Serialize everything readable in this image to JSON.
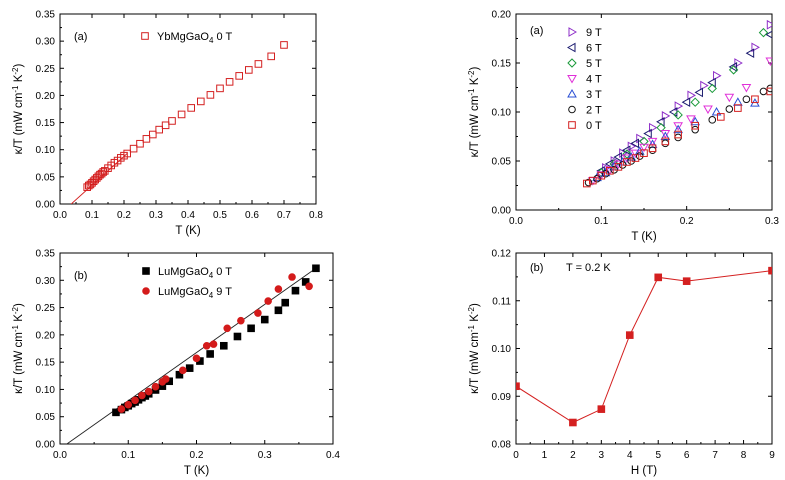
{
  "chart_data": [
    {
      "type": "scatter",
      "panel": "(a)",
      "xlabel": "T (K)",
      "ylabel": "κ/T (mW cm⁻¹ K⁻²)",
      "xlim": [
        0,
        0.8
      ],
      "ylim": [
        0,
        0.35
      ],
      "xticks": [
        "0.0",
        "0.1",
        "0.2",
        "0.3",
        "0.4",
        "0.5",
        "0.6",
        "0.7",
        "0.8"
      ],
      "yticks": [
        "0.00",
        "0.05",
        "0.10",
        "0.15",
        "0.20",
        "0.25",
        "0.30",
        "0.35"
      ],
      "legend_position": "top-left",
      "series": [
        {
          "name": "YbMgGaO₄ 0 T",
          "marker": "open-square",
          "color": "#d42020",
          "points": [
            [
              0.085,
              0.031
            ],
            [
              0.09,
              0.034
            ],
            [
              0.095,
              0.036
            ],
            [
              0.1,
              0.039
            ],
            [
              0.105,
              0.042
            ],
            [
              0.11,
              0.045
            ],
            [
              0.115,
              0.048
            ],
            [
              0.12,
              0.051
            ],
            [
              0.125,
              0.054
            ],
            [
              0.13,
              0.056
            ],
            [
              0.135,
              0.059
            ],
            [
              0.14,
              0.061
            ],
            [
              0.15,
              0.066
            ],
            [
              0.16,
              0.071
            ],
            [
              0.17,
              0.076
            ],
            [
              0.18,
              0.08
            ],
            [
              0.19,
              0.085
            ],
            [
              0.2,
              0.089
            ],
            [
              0.21,
              0.093
            ],
            [
              0.23,
              0.102
            ],
            [
              0.25,
              0.111
            ],
            [
              0.27,
              0.12
            ],
            [
              0.29,
              0.128
            ],
            [
              0.31,
              0.137
            ],
            [
              0.33,
              0.145
            ],
            [
              0.35,
              0.153
            ],
            [
              0.38,
              0.165
            ],
            [
              0.41,
              0.177
            ],
            [
              0.44,
              0.189
            ],
            [
              0.47,
              0.201
            ],
            [
              0.5,
              0.213
            ],
            [
              0.53,
              0.225
            ],
            [
              0.56,
              0.236
            ],
            [
              0.59,
              0.247
            ],
            [
              0.62,
              0.258
            ],
            [
              0.66,
              0.272
            ],
            [
              0.7,
              0.293
            ]
          ]
        }
      ],
      "fit_line": [
        [
          0.035,
          0.0
        ],
        [
          0.21,
          0.093
        ]
      ]
    },
    {
      "type": "scatter",
      "panel": "(a)",
      "xlabel": "T (K)",
      "ylabel": "κ/T (mW cm⁻¹ K⁻²)",
      "xlim": [
        0,
        0.3
      ],
      "ylim": [
        0,
        0.2
      ],
      "xticks": [
        "0.0",
        "0.1",
        "0.2",
        "0.3"
      ],
      "yticks": [
        "0.00",
        "0.05",
        "0.10",
        "0.15",
        "0.20"
      ],
      "legend_position": "top-left",
      "series": [
        {
          "name": "9 T",
          "marker": "triangle-right",
          "color": "#8e2fc8",
          "points": [
            [
              0.105,
              0.043
            ],
            [
              0.115,
              0.05
            ],
            [
              0.125,
              0.058
            ],
            [
              0.135,
              0.065
            ],
            [
              0.145,
              0.073
            ],
            [
              0.16,
              0.084
            ],
            [
              0.175,
              0.096
            ],
            [
              0.19,
              0.106
            ],
            [
              0.205,
              0.117
            ],
            [
              0.22,
              0.127
            ],
            [
              0.235,
              0.137
            ],
            [
              0.26,
              0.15
            ],
            [
              0.28,
              0.166
            ],
            [
              0.298,
              0.189
            ]
          ]
        },
        {
          "name": "6 T",
          "marker": "triangle-left",
          "color": "#1a1a6e",
          "points": [
            [
              0.1,
              0.04
            ],
            [
              0.11,
              0.047
            ],
            [
              0.12,
              0.054
            ],
            [
              0.13,
              0.061
            ],
            [
              0.14,
              0.068
            ],
            [
              0.155,
              0.078
            ],
            [
              0.17,
              0.09
            ],
            [
              0.185,
              0.1
            ],
            [
              0.2,
              0.11
            ],
            [
              0.215,
              0.12
            ],
            [
              0.23,
              0.13
            ],
            [
              0.255,
              0.146
            ],
            [
              0.275,
              0.16
            ],
            [
              0.298,
              0.179
            ]
          ]
        },
        {
          "name": "5 T",
          "marker": "diamond",
          "color": "#1a9a3a",
          "points": [
            [
              0.1,
              0.038
            ],
            [
              0.115,
              0.047
            ],
            [
              0.13,
              0.057
            ],
            [
              0.15,
              0.07
            ],
            [
              0.17,
              0.084
            ],
            [
              0.19,
              0.097
            ],
            [
              0.21,
              0.11
            ],
            [
              0.23,
              0.124
            ],
            [
              0.255,
              0.143
            ],
            [
              0.29,
              0.181
            ]
          ]
        },
        {
          "name": "4 T",
          "marker": "triangle-down",
          "color": "#e030d8",
          "points": [
            [
              0.09,
              0.03
            ],
            [
              0.1,
              0.036
            ],
            [
              0.11,
              0.041
            ],
            [
              0.12,
              0.047
            ],
            [
              0.13,
              0.053
            ],
            [
              0.14,
              0.058
            ],
            [
              0.15,
              0.064
            ],
            [
              0.16,
              0.07
            ],
            [
              0.175,
              0.078
            ],
            [
              0.19,
              0.086
            ],
            [
              0.205,
              0.093
            ],
            [
              0.225,
              0.103
            ],
            [
              0.25,
              0.115
            ],
            [
              0.27,
              0.125
            ],
            [
              0.298,
              0.152
            ]
          ]
        },
        {
          "name": "3 T",
          "marker": "triangle-up",
          "color": "#2a4fd4",
          "points": [
            [
              0.095,
              0.033
            ],
            [
              0.105,
              0.038
            ],
            [
              0.115,
              0.044
            ],
            [
              0.125,
              0.049
            ],
            [
              0.135,
              0.054
            ],
            [
              0.145,
              0.06
            ],
            [
              0.16,
              0.067
            ],
            [
              0.175,
              0.075
            ],
            [
              0.19,
              0.082
            ],
            [
              0.21,
              0.09
            ],
            [
              0.235,
              0.1
            ],
            [
              0.26,
              0.11
            ],
            [
              0.28,
              0.109
            ]
          ]
        },
        {
          "name": "2 T",
          "marker": "circle",
          "color": "#111111",
          "points": [
            [
              0.085,
              0.028
            ],
            [
              0.095,
              0.032
            ],
            [
              0.105,
              0.037
            ],
            [
              0.115,
              0.041
            ],
            [
              0.125,
              0.046
            ],
            [
              0.135,
              0.05
            ],
            [
              0.145,
              0.055
            ],
            [
              0.16,
              0.061
            ],
            [
              0.175,
              0.068
            ],
            [
              0.19,
              0.074
            ],
            [
              0.21,
              0.082
            ],
            [
              0.23,
              0.092
            ],
            [
              0.25,
              0.103
            ],
            [
              0.27,
              0.113
            ],
            [
              0.29,
              0.121
            ],
            [
              0.298,
              0.124
            ]
          ]
        },
        {
          "name": "0 T",
          "marker": "square",
          "color": "#d42020",
          "points": [
            [
              0.083,
              0.027
            ],
            [
              0.09,
              0.03
            ],
            [
              0.1,
              0.035
            ],
            [
              0.11,
              0.04
            ],
            [
              0.12,
              0.044
            ],
            [
              0.13,
              0.049
            ],
            [
              0.14,
              0.053
            ],
            [
              0.15,
              0.058
            ],
            [
              0.16,
              0.063
            ],
            [
              0.175,
              0.07
            ],
            [
              0.19,
              0.077
            ],
            [
              0.21,
              0.086
            ],
            [
              0.24,
              0.095
            ],
            [
              0.26,
              0.104
            ],
            [
              0.28,
              0.113
            ],
            [
              0.298,
              0.121
            ]
          ]
        }
      ]
    },
    {
      "type": "scatter",
      "panel": "(b)",
      "xlabel": "T (K)",
      "ylabel": "κ/T (mW cm⁻¹ K⁻²)",
      "xlim": [
        0,
        0.4
      ],
      "ylim": [
        0,
        0.35
      ],
      "xticks": [
        "0.0",
        "0.1",
        "0.2",
        "0.3",
        "0.4"
      ],
      "yticks": [
        "0.00",
        "0.05",
        "0.10",
        "0.15",
        "0.20",
        "0.25",
        "0.30",
        "0.35"
      ],
      "legend_position": "top-left",
      "series": [
        {
          "name": "LuMgGaO₄ 0 T",
          "marker": "filled-square",
          "color": "#000000",
          "points": [
            [
              0.082,
              0.058
            ],
            [
              0.09,
              0.063
            ],
            [
              0.095,
              0.067
            ],
            [
              0.1,
              0.07
            ],
            [
              0.105,
              0.074
            ],
            [
              0.11,
              0.077
            ],
            [
              0.115,
              0.081
            ],
            [
              0.12,
              0.085
            ],
            [
              0.125,
              0.088
            ],
            [
              0.13,
              0.092
            ],
            [
              0.14,
              0.099
            ],
            [
              0.15,
              0.106
            ],
            [
              0.16,
              0.115
            ],
            [
              0.175,
              0.127
            ],
            [
              0.19,
              0.139
            ],
            [
              0.205,
              0.152
            ],
            [
              0.22,
              0.165
            ],
            [
              0.24,
              0.18
            ],
            [
              0.26,
              0.197
            ],
            [
              0.28,
              0.212
            ],
            [
              0.3,
              0.228
            ],
            [
              0.32,
              0.245
            ],
            [
              0.33,
              0.259
            ],
            [
              0.345,
              0.281
            ],
            [
              0.36,
              0.297
            ],
            [
              0.375,
              0.322
            ]
          ]
        },
        {
          "name": "LuMgGaO₄ 9 T",
          "marker": "filled-circle",
          "color": "#d41b1b",
          "points": [
            [
              0.09,
              0.064
            ],
            [
              0.1,
              0.072
            ],
            [
              0.11,
              0.08
            ],
            [
              0.12,
              0.089
            ],
            [
              0.13,
              0.096
            ],
            [
              0.14,
              0.105
            ],
            [
              0.15,
              0.114
            ],
            [
              0.155,
              0.119
            ],
            [
              0.18,
              0.135
            ],
            [
              0.2,
              0.157
            ],
            [
              0.215,
              0.18
            ],
            [
              0.225,
              0.183
            ],
            [
              0.245,
              0.212
            ],
            [
              0.265,
              0.226
            ],
            [
              0.29,
              0.24
            ],
            [
              0.305,
              0.262
            ],
            [
              0.32,
              0.284
            ],
            [
              0.34,
              0.306
            ],
            [
              0.365,
              0.289
            ]
          ]
        }
      ],
      "fit_line": [
        [
          0.01,
          0.0
        ],
        [
          0.375,
          0.322
        ]
      ]
    },
    {
      "type": "line",
      "panel": "(b)",
      "annotation": "T = 0.2 K",
      "xlabel": "H (T)",
      "ylabel": "κ/T (mW cm⁻¹ K⁻²)",
      "xlim": [
        0,
        9
      ],
      "ylim": [
        0.08,
        0.12
      ],
      "xticks": [
        "0",
        "1",
        "2",
        "3",
        "4",
        "5",
        "6",
        "7",
        "8",
        "9"
      ],
      "yticks": [
        "0.08",
        "0.09",
        "0.10",
        "0.11",
        "0.12"
      ],
      "series": [
        {
          "marker": "filled-square",
          "color": "#d42020",
          "x": [
            0,
            2,
            3,
            4,
            5,
            6,
            9
          ],
          "values": [
            0.0921,
            0.0845,
            0.0873,
            0.1028,
            0.1149,
            0.1141,
            0.1163
          ]
        }
      ]
    }
  ]
}
